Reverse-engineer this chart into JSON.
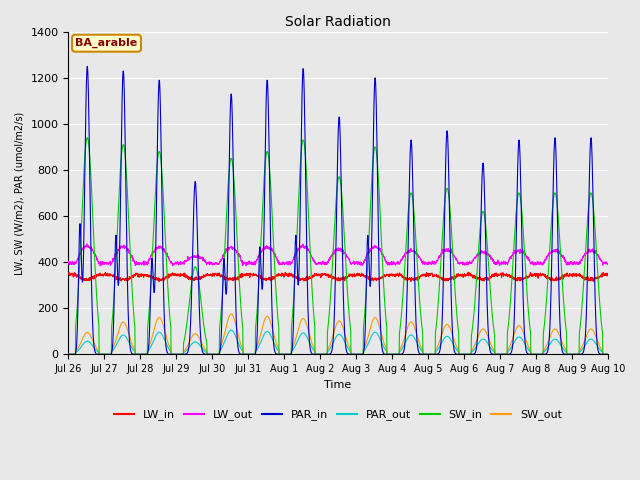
{
  "title": "Solar Radiation",
  "ylabel": "LW, SW (W/m2), PAR (umol/m2/s)",
  "xlabel": "Time",
  "annotation": "BA_arable",
  "annotation_bbox_fc": "#ffffcc",
  "annotation_bbox_ec": "#cc8800",
  "annotation_color": "#880000",
  "ylim": [
    0,
    1400
  ],
  "yticks": [
    0,
    200,
    400,
    600,
    800,
    1000,
    1200,
    1400
  ],
  "n_days": 15,
  "colors": {
    "LW_in": "#ff0000",
    "LW_out": "#ff00ff",
    "PAR_in": "#0000cc",
    "PAR_out": "#00cccc",
    "SW_in": "#00cc00",
    "SW_out": "#ff9900"
  },
  "background_color": "#e8e8e8",
  "grid_color": "#ffffff",
  "tick_labels": [
    "Jul 26",
    "Jul 27",
    "Jul 28",
    "Jul 29",
    "Jul 30",
    "Jul 31",
    "Aug 1",
    "Aug 2",
    "Aug 3",
    "Aug 4",
    "Aug 5",
    "Aug 6",
    "Aug 7",
    "Aug 8",
    "Aug 9",
    "Aug 10"
  ],
  "PAR_in_peaks": [
    1250,
    1230,
    1190,
    750,
    1130,
    1190,
    1240,
    1030,
    1200,
    930,
    970,
    830,
    930,
    940,
    940
  ],
  "PAR_in_peaks2": [
    550,
    500,
    400,
    0,
    400,
    450,
    500,
    0,
    500,
    0,
    0,
    0,
    0,
    0,
    0
  ],
  "SW_in_peaks": [
    940,
    910,
    880,
    380,
    850,
    880,
    930,
    770,
    900,
    700,
    720,
    620,
    700,
    700,
    700
  ],
  "SW_out_peaks": [
    95,
    140,
    160,
    90,
    175,
    165,
    155,
    145,
    160,
    140,
    130,
    110,
    125,
    110,
    110
  ],
  "LW_in_base": 345,
  "LW_out_base": 395,
  "figsize": [
    6.4,
    4.8
  ],
  "dpi": 100
}
